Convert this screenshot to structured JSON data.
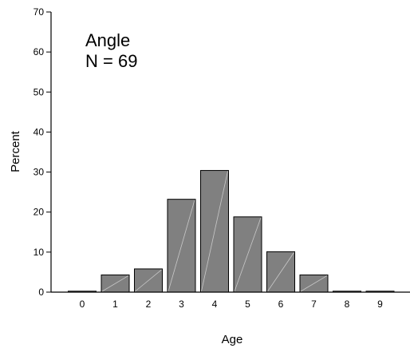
{
  "chart_data": {
    "type": "bar",
    "categories": [
      "0",
      "1",
      "2",
      "3",
      "4",
      "5",
      "6",
      "7",
      "8",
      "9"
    ],
    "values": [
      0,
      4.3,
      5.8,
      23.2,
      30.4,
      18.8,
      10.1,
      4.3,
      0,
      0
    ],
    "xlabel": "Age",
    "ylabel": "Percent",
    "ylim": [
      0,
      70
    ],
    "yticks": [
      "0",
      "10",
      "20",
      "30",
      "40",
      "50",
      "60",
      "70"
    ],
    "annotation": {
      "line1": "Angle",
      "line2": "N = 69"
    },
    "grid": false,
    "colors": {
      "bar_fill": "#808080",
      "bar_stroke": "#000000",
      "hatch": "#c8c8c8"
    }
  }
}
